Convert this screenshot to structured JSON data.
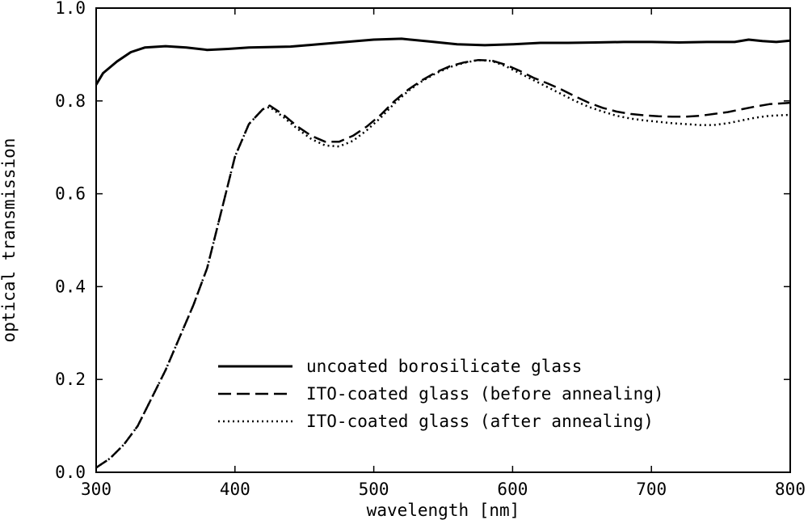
{
  "chart_data": {
    "type": "line",
    "title": "",
    "xlabel": "wavelength [nm]",
    "ylabel": "optical transmission",
    "xlim": [
      300,
      800
    ],
    "ylim": [
      0.0,
      1.0
    ],
    "x_ticks": [
      300,
      400,
      500,
      600,
      700,
      800
    ],
    "y_ticks": [
      0.0,
      0.2,
      0.4,
      0.6,
      0.8,
      1.0
    ],
    "x_tick_labels": [
      "300",
      "400",
      "500",
      "600",
      "700",
      "800"
    ],
    "y_tick_labels": [
      "0.0",
      "0.2",
      "0.4",
      "0.6",
      "0.8",
      "1.0"
    ],
    "grid": false,
    "legend_position": "lower-center",
    "series": [
      {
        "name": "uncoated borosilicate glass",
        "line_style": "solid",
        "color": "#000000",
        "points": [
          [
            300,
            0.835
          ],
          [
            305,
            0.86
          ],
          [
            315,
            0.885
          ],
          [
            325,
            0.905
          ],
          [
            335,
            0.915
          ],
          [
            350,
            0.918
          ],
          [
            365,
            0.915
          ],
          [
            380,
            0.91
          ],
          [
            395,
            0.912
          ],
          [
            410,
            0.915
          ],
          [
            440,
            0.917
          ],
          [
            460,
            0.922
          ],
          [
            480,
            0.927
          ],
          [
            500,
            0.932
          ],
          [
            520,
            0.934
          ],
          [
            540,
            0.928
          ],
          [
            560,
            0.922
          ],
          [
            580,
            0.92
          ],
          [
            600,
            0.922
          ],
          [
            620,
            0.925
          ],
          [
            640,
            0.925
          ],
          [
            660,
            0.926
          ],
          [
            680,
            0.927
          ],
          [
            700,
            0.927
          ],
          [
            720,
            0.926
          ],
          [
            740,
            0.927
          ],
          [
            760,
            0.927
          ],
          [
            770,
            0.932
          ],
          [
            780,
            0.929
          ],
          [
            790,
            0.927
          ],
          [
            800,
            0.93
          ]
        ]
      },
      {
        "name": "ITO-coated glass (before annealing)",
        "line_style": "dashed",
        "color": "#000000",
        "points": [
          [
            300,
            0.01
          ],
          [
            310,
            0.03
          ],
          [
            320,
            0.06
          ],
          [
            330,
            0.1
          ],
          [
            340,
            0.16
          ],
          [
            350,
            0.22
          ],
          [
            360,
            0.29
          ],
          [
            370,
            0.36
          ],
          [
            380,
            0.44
          ],
          [
            390,
            0.56
          ],
          [
            400,
            0.68
          ],
          [
            410,
            0.75
          ],
          [
            420,
            0.782
          ],
          [
            425,
            0.79
          ],
          [
            435,
            0.77
          ],
          [
            445,
            0.745
          ],
          [
            455,
            0.725
          ],
          [
            465,
            0.712
          ],
          [
            475,
            0.712
          ],
          [
            485,
            0.725
          ],
          [
            495,
            0.745
          ],
          [
            505,
            0.77
          ],
          [
            515,
            0.8
          ],
          [
            525,
            0.825
          ],
          [
            535,
            0.845
          ],
          [
            545,
            0.862
          ],
          [
            555,
            0.875
          ],
          [
            565,
            0.883
          ],
          [
            575,
            0.888
          ],
          [
            585,
            0.887
          ],
          [
            595,
            0.878
          ],
          [
            605,
            0.865
          ],
          [
            615,
            0.85
          ],
          [
            625,
            0.838
          ],
          [
            635,
            0.825
          ],
          [
            645,
            0.81
          ],
          [
            655,
            0.796
          ],
          [
            665,
            0.785
          ],
          [
            675,
            0.777
          ],
          [
            685,
            0.772
          ],
          [
            695,
            0.769
          ],
          [
            705,
            0.767
          ],
          [
            715,
            0.766
          ],
          [
            725,
            0.766
          ],
          [
            735,
            0.768
          ],
          [
            745,
            0.772
          ],
          [
            755,
            0.776
          ],
          [
            765,
            0.782
          ],
          [
            775,
            0.788
          ],
          [
            785,
            0.793
          ],
          [
            800,
            0.796
          ]
        ]
      },
      {
        "name": "ITO-coated glass (after annealing)",
        "line_style": "dotted",
        "color": "#000000",
        "points": [
          [
            300,
            0.01
          ],
          [
            310,
            0.03
          ],
          [
            320,
            0.06
          ],
          [
            330,
            0.1
          ],
          [
            340,
            0.16
          ],
          [
            350,
            0.22
          ],
          [
            360,
            0.29
          ],
          [
            370,
            0.36
          ],
          [
            380,
            0.44
          ],
          [
            390,
            0.56
          ],
          [
            400,
            0.68
          ],
          [
            410,
            0.75
          ],
          [
            420,
            0.782
          ],
          [
            425,
            0.787
          ],
          [
            435,
            0.765
          ],
          [
            445,
            0.74
          ],
          [
            455,
            0.718
          ],
          [
            465,
            0.704
          ],
          [
            475,
            0.702
          ],
          [
            485,
            0.714
          ],
          [
            495,
            0.737
          ],
          [
            505,
            0.764
          ],
          [
            515,
            0.795
          ],
          [
            525,
            0.822
          ],
          [
            535,
            0.843
          ],
          [
            545,
            0.86
          ],
          [
            555,
            0.873
          ],
          [
            565,
            0.882
          ],
          [
            575,
            0.888
          ],
          [
            585,
            0.886
          ],
          [
            595,
            0.875
          ],
          [
            605,
            0.86
          ],
          [
            615,
            0.845
          ],
          [
            625,
            0.83
          ],
          [
            635,
            0.815
          ],
          [
            645,
            0.8
          ],
          [
            655,
            0.787
          ],
          [
            665,
            0.777
          ],
          [
            675,
            0.768
          ],
          [
            685,
            0.762
          ],
          [
            695,
            0.758
          ],
          [
            705,
            0.755
          ],
          [
            715,
            0.752
          ],
          [
            725,
            0.75
          ],
          [
            735,
            0.748
          ],
          [
            745,
            0.748
          ],
          [
            755,
            0.752
          ],
          [
            765,
            0.758
          ],
          [
            775,
            0.764
          ],
          [
            785,
            0.768
          ],
          [
            800,
            0.77
          ]
        ]
      }
    ]
  }
}
